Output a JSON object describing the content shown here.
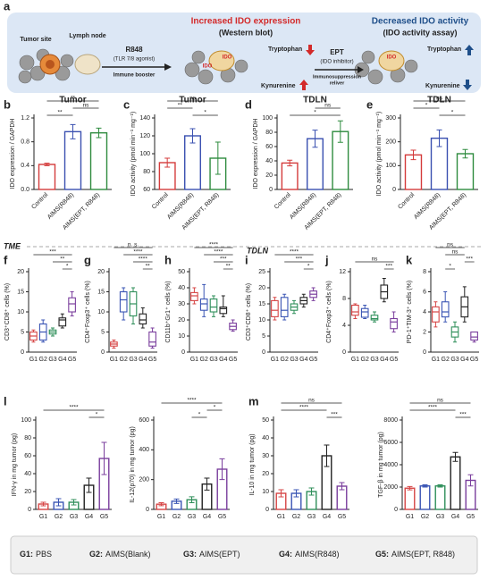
{
  "schematic": {
    "panel": "a",
    "tumor": "Tumor site",
    "lymph": "Lymph node",
    "drug": "R848",
    "drug_note": "(TLR 7/8 agonist)",
    "drug_role": "Immune booster",
    "up_title": "Increased IDO expression",
    "up_method": "(Western blot)",
    "trp1": "Tryptophan",
    "kyn1": "Kynurenine",
    "ido1": "IDO",
    "ido2": "IDO",
    "inhibitor": "EPT",
    "inhibitor_note": "(IDO inhibitor)",
    "inhibitor_role1": "Immunosuppression",
    "inhibitor_role2": "reliver",
    "down_title": "Decreased IDO activity",
    "down_method": "(IDO activity assay)",
    "trp2": "Tryptophan",
    "kyn2": "Kynurenine",
    "ido3": "IDO"
  },
  "sections": {
    "left": "TME",
    "right": "TDLN"
  },
  "chart_data": [
    {
      "type": "bar",
      "panel": "b",
      "title": "Tumor",
      "ylabel": "IDO expression / GAPDH",
      "categories": [
        "Control",
        "AIMS(R848)",
        "AIMS(EPT, R848)"
      ],
      "colors": [
        "#d43b3b",
        "#3a50b0",
        "#2e8b3e"
      ],
      "values": [
        0.42,
        0.97,
        0.95
      ],
      "errors": [
        0.02,
        0.12,
        0.08
      ],
      "ylim": [
        0,
        1.2
      ],
      "yticks": [
        {
          "value": 0,
          "label": "0.0"
        },
        0.4,
        0.8,
        1.2
      ],
      "significance": [
        {
          "pair": [
            0,
            1
          ],
          "label": "**"
        },
        {
          "pair": [
            1,
            2
          ],
          "label": "ns"
        },
        {
          "pair": [
            0,
            2
          ],
          "label": "**"
        }
      ]
    },
    {
      "type": "bar",
      "panel": "c",
      "title": "Tumor",
      "ylabel": "IDO activity (pmol min⁻¹ mg⁻¹)",
      "categories": [
        "Control",
        "AIMS(R848)",
        "AIMS(EPT, R848)"
      ],
      "colors": [
        "#d43b3b",
        "#3a50b0",
        "#2e8b3e"
      ],
      "values": [
        90,
        120,
        95
      ],
      "errors": [
        5,
        8,
        18
      ],
      "ylim": [
        60,
        140
      ],
      "yticks": [
        60,
        80,
        100,
        120,
        140
      ],
      "significance": [
        {
          "pair": [
            1,
            2
          ],
          "label": "*"
        },
        {
          "pair": [
            0,
            1
          ],
          "label": "**"
        },
        {
          "pair": [
            0,
            2
          ],
          "label": "ns"
        }
      ]
    },
    {
      "type": "bar",
      "panel": "d",
      "title": "TDLN",
      "ylabel": "IDO expression / GAPDH",
      "categories": [
        "Control",
        "AIMS(R848)",
        "AIMS(EPT, R848)"
      ],
      "colors": [
        "#d43b3b",
        "#3a50b0",
        "#2e8b3e"
      ],
      "values": [
        37,
        71,
        81
      ],
      "errors": [
        4,
        12,
        15
      ],
      "ylim": [
        0,
        100
      ],
      "yticks": [
        0,
        20,
        40,
        60,
        80,
        100
      ],
      "significance": [
        {
          "pair": [
            0,
            2
          ],
          "label": "*"
        },
        {
          "pair": [
            1,
            2
          ],
          "label": "ns"
        }
      ]
    },
    {
      "type": "bar",
      "panel": "e",
      "title": "TDLN",
      "ylabel": "IDO activity (pmol min⁻¹ mg⁻¹)",
      "categories": [
        "Control",
        "AIMS(R848)",
        "AIMS(EPT, R848)"
      ],
      "colors": [
        "#d43b3b",
        "#3a50b0",
        "#2e8b3e"
      ],
      "values": [
        145,
        215,
        150
      ],
      "errors": [
        20,
        35,
        18
      ],
      "ylim": [
        0,
        300
      ],
      "yticks": [
        0,
        100,
        200,
        300
      ],
      "significance": [
        {
          "pair": [
            1,
            2
          ],
          "label": "*"
        },
        {
          "pair": [
            0,
            1
          ],
          "label": "*"
        },
        {
          "pair": [
            0,
            2
          ],
          "label": "ns"
        }
      ]
    },
    {
      "type": "box",
      "panel": "f",
      "ylabel": "CD3⁺CD8⁺ cells (%)",
      "categories": [
        "G1",
        "G2",
        "G3",
        "G4",
        "G5"
      ],
      "colors": [
        "#d64545",
        "#3a55b4",
        "#2f8f5a",
        "#222222",
        "#7a3e9d"
      ],
      "values": [
        4,
        5,
        5,
        8,
        12
      ],
      "q1": [
        3,
        3,
        4.5,
        6.5,
        10
      ],
      "q3": [
        5,
        7,
        5.5,
        8.5,
        13.5
      ],
      "low": [
        2.5,
        2.5,
        4,
        6,
        9
      ],
      "high": [
        5.5,
        8,
        6,
        9.5,
        15
      ],
      "ylim": [
        0,
        20
      ],
      "yticks": [
        0,
        5,
        10,
        15,
        20
      ],
      "significance": [
        {
          "pair": [
            3,
            4
          ],
          "label": "*"
        },
        {
          "pair": [
            2,
            4
          ],
          "label": "**"
        },
        {
          "pair": [
            0,
            4
          ],
          "label": "***"
        }
      ]
    },
    {
      "type": "box",
      "panel": "g",
      "ylabel": "CD4⁺Foxp3⁺ cells (%)",
      "categories": [
        "G1",
        "G2",
        "G3",
        "G4",
        "G5"
      ],
      "colors": [
        "#d64545",
        "#3a55b4",
        "#2f8f5a",
        "#222222",
        "#7a3e9d"
      ],
      "values": [
        2,
        13,
        12,
        8,
        2.5
      ],
      "q1": [
        1.5,
        10,
        9,
        7,
        1.5
      ],
      "q3": [
        2.5,
        15,
        15,
        9.5,
        5
      ],
      "low": [
        1,
        8,
        7,
        6,
        1
      ],
      "high": [
        3,
        16,
        16,
        11,
        6
      ],
      "ylim": [
        0,
        20
      ],
      "yticks": [
        0,
        5,
        10,
        15,
        20
      ],
      "significance": [
        {
          "pair": [
            3,
            4
          ],
          "label": "**"
        },
        {
          "pair": [
            2,
            4
          ],
          "label": "****"
        },
        {
          "pair": [
            1,
            4
          ],
          "label": "****"
        },
        {
          "pair": [
            0,
            4
          ],
          "label": "n. s."
        }
      ]
    },
    {
      "type": "box",
      "panel": "h",
      "ylabel": "CD11b⁺Gr1⁺ cells (%)",
      "categories": [
        "G1",
        "G2",
        "G3",
        "G4",
        "G5"
      ],
      "colors": [
        "#d64545",
        "#3a55b4",
        "#2f8f5a",
        "#222222",
        "#7a3e9d"
      ],
      "values": [
        35,
        30,
        28,
        27,
        16
      ],
      "q1": [
        32,
        26,
        25,
        24,
        14
      ],
      "q3": [
        37,
        33,
        33,
        28,
        18
      ],
      "low": [
        30,
        22,
        22,
        22,
        13
      ],
      "high": [
        40,
        42,
        35,
        35,
        20
      ],
      "ylim": [
        0,
        50
      ],
      "yticks": [
        0,
        10,
        20,
        30,
        40,
        50
      ],
      "significance": [
        {
          "pair": [
            3,
            4
          ],
          "label": "**"
        },
        {
          "pair": [
            2,
            4
          ],
          "label": "***"
        },
        {
          "pair": [
            1,
            4
          ],
          "label": "****"
        },
        {
          "pair": [
            0,
            4
          ],
          "label": "****"
        }
      ]
    },
    {
      "type": "box",
      "panel": "i",
      "ylabel": "CD3⁺CD8⁺ cells (%)",
      "categories": [
        "G1",
        "G2",
        "G3",
        "G4",
        "G5"
      ],
      "colors": [
        "#d64545",
        "#3a55b4",
        "#2f8f5a",
        "#222222",
        "#7a3e9d"
      ],
      "values": [
        13,
        13,
        14,
        16,
        18
      ],
      "q1": [
        11,
        11,
        13,
        15,
        17
      ],
      "q3": [
        16,
        17,
        15,
        17,
        19
      ],
      "low": [
        10,
        10,
        12,
        14,
        16
      ],
      "high": [
        17,
        18,
        16,
        18,
        20
      ],
      "ylim": [
        0,
        25
      ],
      "yticks": [
        0,
        5,
        10,
        15,
        20,
        25
      ],
      "significance": [
        {
          "pair": [
            3,
            4
          ],
          "label": "*"
        },
        {
          "pair": [
            1,
            4
          ],
          "label": "***"
        },
        {
          "pair": [
            0,
            4
          ],
          "label": "****"
        }
      ]
    },
    {
      "type": "box",
      "panel": "j",
      "ylabel": "CD4⁺Foxp3⁺ cells (%)",
      "categories": [
        "G1",
        "G2",
        "G3",
        "G4",
        "G5"
      ],
      "colors": [
        "#d64545",
        "#3a55b4",
        "#2f8f5a",
        "#222222",
        "#7a3e9d"
      ],
      "values": [
        6,
        6,
        5,
        9,
        4.5
      ],
      "q1": [
        5.5,
        5.2,
        4.8,
        8,
        3.5
      ],
      "q3": [
        7,
        6.5,
        5.5,
        10,
        5
      ],
      "low": [
        5,
        5,
        4.5,
        7.5,
        3
      ],
      "high": [
        7.2,
        7,
        6,
        11,
        6
      ],
      "ylim": [
        0,
        12
      ],
      "yticks": [
        0,
        4,
        8,
        12
      ],
      "significance": [
        {
          "pair": [
            3,
            4
          ],
          "label": "***"
        },
        {
          "pair": [
            0,
            4
          ],
          "label": "ns"
        }
      ]
    },
    {
      "type": "box",
      "panel": "k",
      "ylabel": "PD-1⁺TIM-3⁺ cells (%)",
      "categories": [
        "G1",
        "G2",
        "G3",
        "G4",
        "G5"
      ],
      "colors": [
        "#d64545",
        "#3a55b4",
        "#2f8f5a",
        "#222222",
        "#7a3e9d"
      ],
      "values": [
        4,
        4,
        2,
        4.5,
        1.5
      ],
      "q1": [
        3,
        3.5,
        1.5,
        3.5,
        1.2
      ],
      "q3": [
        4.5,
        5,
        2.5,
        5.5,
        2
      ],
      "low": [
        2.5,
        3,
        1,
        3,
        1
      ],
      "high": [
        5,
        6,
        3,
        6.5,
        2
      ],
      "ylim": [
        0,
        8
      ],
      "yticks": [
        0,
        2,
        4,
        6,
        8
      ],
      "significance": [
        {
          "pair": [
            1,
            2
          ],
          "label": "*"
        },
        {
          "pair": [
            3,
            4
          ],
          "label": "***"
        },
        {
          "pair": [
            1,
            3
          ],
          "label": "ns"
        },
        {
          "pair": [
            0,
            3
          ],
          "label": "ns"
        }
      ]
    },
    {
      "type": "bar",
      "panel": "l",
      "ylabel": "IFN-γ in mg tumor (pg)",
      "categories": [
        "G1",
        "G2",
        "G3",
        "G4",
        "G5"
      ],
      "colors": [
        "#d64545",
        "#3a55b4",
        "#2f8f5a",
        "#222222",
        "#7a3e9d"
      ],
      "values": [
        6,
        8,
        8,
        27,
        57
      ],
      "errors": [
        2,
        4,
        3,
        8,
        18
      ],
      "ylim": [
        0,
        100
      ],
      "yticks": [
        0,
        20,
        40,
        60,
        80,
        100
      ],
      "significance": [
        {
          "pair": [
            3,
            4
          ],
          "label": "*"
        },
        {
          "pair": [
            0,
            4
          ],
          "label": "****"
        }
      ]
    },
    {
      "type": "bar",
      "ylabel": "IL-12(p70) in mg tumor (pg)",
      "categories": [
        "G1",
        "G2",
        "G3",
        "G4",
        "G5"
      ],
      "colors": [
        "#d64545",
        "#3a55b4",
        "#2f8f5a",
        "#222222",
        "#7a3e9d"
      ],
      "values": [
        35,
        55,
        65,
        170,
        270
      ],
      "errors": [
        10,
        15,
        20,
        40,
        70
      ],
      "ylim": [
        0,
        600
      ],
      "yticks": [
        0,
        200,
        400,
        600
      ],
      "significance": [
        {
          "pair": [
            2,
            3
          ],
          "label": "*"
        },
        {
          "pair": [
            3,
            4
          ],
          "label": "*"
        },
        {
          "pair": [
            0,
            4
          ],
          "label": "****"
        }
      ]
    },
    {
      "type": "bar",
      "panel": "m",
      "ylabel": "IL-10 in mg tumor (pg)",
      "categories": [
        "G1",
        "G2",
        "G3",
        "G4",
        "G5"
      ],
      "colors": [
        "#d64545",
        "#3a55b4",
        "#2f8f5a",
        "#222222",
        "#7a3e9d"
      ],
      "values": [
        9,
        9,
        10,
        30,
        13
      ],
      "errors": [
        2,
        2,
        2,
        6,
        2
      ],
      "ylim": [
        0,
        50
      ],
      "yticks": [
        0,
        10,
        20,
        30,
        40,
        50
      ],
      "significance": [
        {
          "pair": [
            3,
            4
          ],
          "label": "***"
        },
        {
          "pair": [
            0,
            3
          ],
          "label": "****"
        },
        {
          "pair": [
            0,
            4
          ],
          "label": "ns"
        }
      ]
    },
    {
      "type": "bar",
      "ylabel": "TGF-β in mg tumor (pg)",
      "categories": [
        "G1",
        "G2",
        "G3",
        "G4",
        "G5"
      ],
      "colors": [
        "#d64545",
        "#3a55b4",
        "#2f8f5a",
        "#222222",
        "#7a3e9d"
      ],
      "values": [
        1900,
        2100,
        2100,
        4700,
        2600
      ],
      "errors": [
        150,
        100,
        100,
        400,
        500
      ],
      "ylim": [
        0,
        8000
      ],
      "yticks": [
        0,
        2000,
        4000,
        6000,
        8000
      ],
      "significance": [
        {
          "pair": [
            3,
            4
          ],
          "label": "***"
        },
        {
          "pair": [
            0,
            3
          ],
          "label": "****"
        },
        {
          "pair": [
            0,
            4
          ],
          "label": "ns"
        }
      ]
    }
  ],
  "legend": [
    {
      "id": "G1:",
      "name": "PBS"
    },
    {
      "id": "G2:",
      "name": "AIMS(Blank)"
    },
    {
      "id": "G3:",
      "name": "AIMS(EPT)"
    },
    {
      "id": "G4:",
      "name": "AIMS(R848)"
    },
    {
      "id": "G5:",
      "name": "AIMS(EPT, R848)"
    }
  ]
}
